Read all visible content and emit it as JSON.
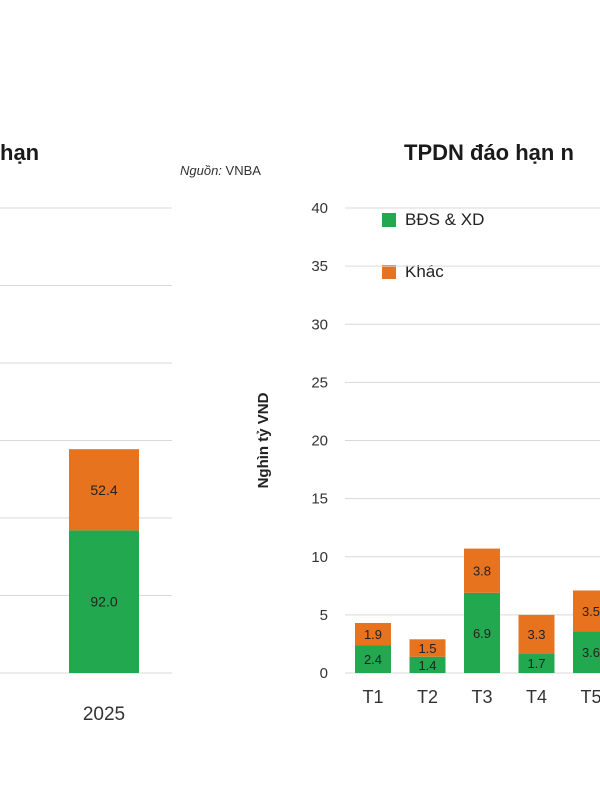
{
  "colors": {
    "green": "#22a94f",
    "orange": "#e8731f",
    "grid": "#d9d9d9"
  },
  "left_chart": {
    "title_fragment": "hạn",
    "source_label": "Nguồn:",
    "source_value": "VNBA"
  },
  "right_chart": {
    "title_fragment": "TPDN đáo hạn n"
  },
  "chart_data": [
    {
      "type": "bar",
      "stacked": true,
      "categories": [
        "2025"
      ],
      "series": [
        {
          "name": "BĐS & XD",
          "color": "#22a94f",
          "values": [
            92.0
          ]
        },
        {
          "name": "Khác",
          "color": "#e8731f",
          "values": [
            52.4
          ]
        }
      ],
      "data_labels": [
        "92.0",
        "52.4"
      ],
      "ylim": [
        0,
        300
      ],
      "grid": true
    },
    {
      "type": "bar",
      "stacked": true,
      "categories": [
        "T1",
        "T2",
        "T3",
        "T4",
        "T5"
      ],
      "series": [
        {
          "name": "BĐS & XD",
          "color": "#22a94f",
          "values": [
            2.4,
            1.4,
            6.9,
            1.7,
            3.6
          ]
        },
        {
          "name": "Khác",
          "color": "#e8731f",
          "values": [
            1.9,
            1.5,
            3.8,
            3.3,
            3.5
          ]
        }
      ],
      "data_labels": {
        "BĐS & XD": [
          "2.4",
          "1.4",
          "6.9",
          "1.7",
          "3.6"
        ],
        "Khác": [
          "1.9",
          "1.5",
          "3.8",
          "3.3",
          "3.5"
        ]
      },
      "ylabel": "Nghìn tỷ VND",
      "yticks": [
        0,
        5,
        10,
        15,
        20,
        25,
        30,
        35,
        40
      ],
      "ylim": [
        0,
        40
      ],
      "grid": true,
      "legend": [
        "BĐS & XD",
        "Khác"
      ],
      "legend_position": "top-left"
    }
  ]
}
